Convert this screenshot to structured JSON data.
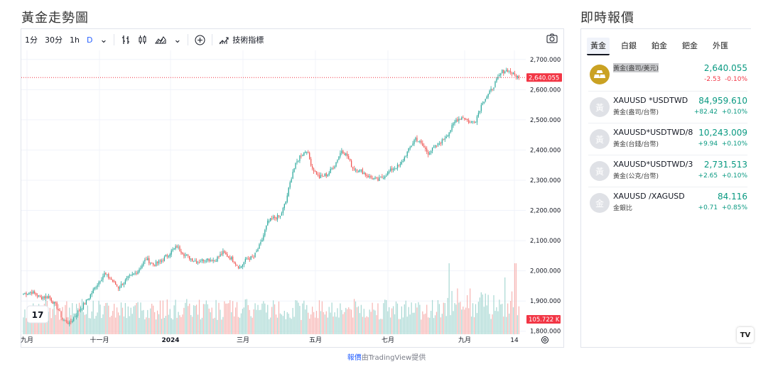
{
  "headings": {
    "chart": "黃金走勢圖",
    "quotes": "即時報價"
  },
  "toolbar": {
    "intervals": [
      "1分",
      "30分",
      "1h",
      "D"
    ],
    "active_interval": "D",
    "indicators_label": "技術指標"
  },
  "attribution": {
    "link": "報價",
    "text": "由TradingView提供"
  },
  "chart_data": {
    "type": "candlestick",
    "title": "",
    "y_ticks": [
      "2,700.000",
      "2,600.000",
      "2,500.000",
      "2,400.000",
      "2,300.000",
      "2,200.000",
      "2,100.000",
      "2,000.000",
      "1,900.000",
      "1,800.000"
    ],
    "ylim": [
      1790,
      2730
    ],
    "x_ticks": [
      "九月",
      "十一月",
      "2024",
      "三月",
      "五月",
      "七月",
      "九月",
      "14"
    ],
    "last_price_label": "2,640.055",
    "last_price": 2640.055,
    "volume_label": "105.722 K",
    "volume_last": 105.722,
    "colors": {
      "up": "#26a69a",
      "down": "#ef5350",
      "up_volume": "#a8d8d3",
      "down_volume": "#f7b5b3"
    },
    "close_anchors": [
      [
        0,
        1925
      ],
      [
        6,
        1930
      ],
      [
        12,
        1912
      ],
      [
        18,
        1915
      ],
      [
        24,
        1880
      ],
      [
        28,
        1840
      ],
      [
        33,
        1825
      ],
      [
        40,
        1870
      ],
      [
        46,
        1905
      ],
      [
        52,
        1950
      ],
      [
        58,
        1990
      ],
      [
        63,
        1970
      ],
      [
        68,
        1945
      ],
      [
        75,
        1975
      ],
      [
        82,
        2000
      ],
      [
        88,
        2040
      ],
      [
        93,
        2020
      ],
      [
        98,
        2030
      ],
      [
        105,
        2060
      ],
      [
        110,
        2080
      ],
      [
        115,
        2055
      ],
      [
        120,
        2040
      ],
      [
        125,
        2030
      ],
      [
        131,
        2040
      ],
      [
        137,
        2035
      ],
      [
        143,
        2060
      ],
      [
        149,
        2040
      ],
      [
        155,
        2010
      ],
      [
        160,
        2040
      ],
      [
        165,
        2045
      ],
      [
        170,
        2090
      ],
      [
        175,
        2160
      ],
      [
        179,
        2175
      ],
      [
        184,
        2180
      ],
      [
        188,
        2230
      ],
      [
        193,
        2330
      ],
      [
        198,
        2380
      ],
      [
        203,
        2400
      ],
      [
        207,
        2340
      ],
      [
        212,
        2310
      ],
      [
        218,
        2320
      ],
      [
        223,
        2350
      ],
      [
        228,
        2400
      ],
      [
        232,
        2380
      ],
      [
        236,
        2340
      ],
      [
        242,
        2330
      ],
      [
        248,
        2310
      ],
      [
        254,
        2300
      ],
      [
        260,
        2320
      ],
      [
        265,
        2340
      ],
      [
        270,
        2350
      ],
      [
        276,
        2400
      ],
      [
        281,
        2440
      ],
      [
        285,
        2420
      ],
      [
        290,
        2390
      ],
      [
        295,
        2410
      ],
      [
        300,
        2430
      ],
      [
        305,
        2460
      ],
      [
        310,
        2500
      ],
      [
        315,
        2510
      ],
      [
        320,
        2490
      ],
      [
        324,
        2500
      ],
      [
        329,
        2560
      ],
      [
        334,
        2590
      ],
      [
        339,
        2630
      ],
      [
        343,
        2660
      ],
      [
        347,
        2665
      ],
      [
        351,
        2650
      ],
      [
        355,
        2641
      ]
    ]
  },
  "quotes": {
    "tabs": [
      "黃金",
      "白銀",
      "鉑金",
      "鈀金",
      "外匯"
    ],
    "active_tab": "黃金",
    "rows": [
      {
        "avatar": "gold-bars",
        "symbol": "",
        "desc": "黃金(盎司/美元)",
        "price": "2,640.055",
        "change": "-2.53",
        "percent": "-0.10%",
        "direction": "down"
      },
      {
        "avatar": "黃",
        "symbol": "XAUUSD *USDTWD",
        "desc": "黃金(盎司/台幣)",
        "price": "84,959.610",
        "change": "+82.42",
        "percent": "+0.10%",
        "direction": "up"
      },
      {
        "avatar": "黃",
        "symbol": "XAUUSD*USDTWD/8",
        "desc": "黃金(台錢/台幣)",
        "price": "10,243.009",
        "change": "+9.94",
        "percent": "+0.10%",
        "direction": "up"
      },
      {
        "avatar": "黃",
        "symbol": "XAUUSD*USDTWD/3",
        "desc": "黃金(公克/台幣)",
        "price": "2,731.513",
        "change": "+2.65",
        "percent": "+0.10%",
        "direction": "up"
      },
      {
        "avatar": "金",
        "symbol": "XAUUSD /XAGUSD",
        "desc": "金銀比",
        "price": "84.116",
        "change": "+0.71",
        "percent": "+0.85%",
        "direction": "up"
      }
    ]
  }
}
